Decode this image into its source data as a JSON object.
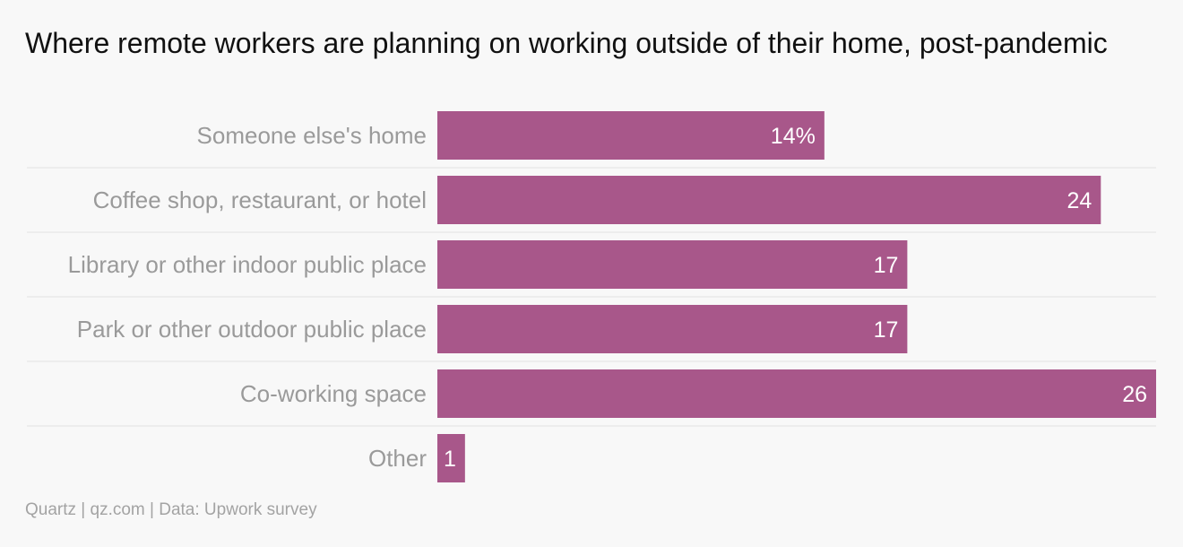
{
  "chart_data": {
    "type": "bar",
    "orientation": "horizontal",
    "title": "Where remote workers are planning on working outside of their home, post-pandemic",
    "categories": [
      "Someone else's home",
      "Coffee shop, restaurant, or hotel",
      "Library or other indoor public place",
      "Park or other outdoor public place",
      "Co-working space",
      "Other"
    ],
    "values": [
      14,
      24,
      17,
      17,
      26,
      1
    ],
    "value_labels": [
      "14%",
      "24",
      "17",
      "17",
      "26",
      "1"
    ],
    "unit": "%",
    "xlim": [
      0,
      26
    ],
    "bar_color": "#a8578a",
    "grid": false,
    "legend": "none"
  },
  "source": "Quartz | qz.com | Data: Upwork survey"
}
